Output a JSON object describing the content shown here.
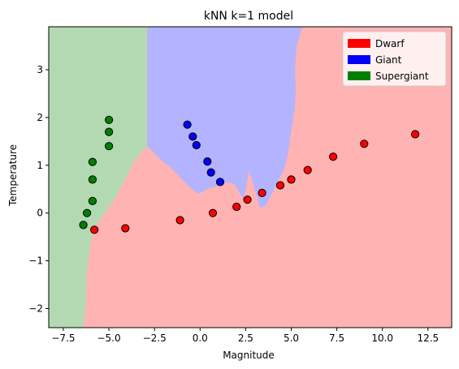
{
  "chart_data": {
    "type": "scatter",
    "title": "kNN k=1 model",
    "xlabel": "Magnitude",
    "ylabel": "Temperature",
    "xlim": [
      -8.3,
      13.8
    ],
    "ylim": [
      -2.4,
      3.9
    ],
    "xticks": [
      "-7.5",
      "-5.0",
      "-2.5",
      "0.0",
      "2.5",
      "5.0",
      "7.5",
      "10.0",
      "12.5"
    ],
    "yticks": [
      "-2",
      "-1",
      "0",
      "1",
      "2",
      "3"
    ],
    "grid": false,
    "legend_position": "top-right",
    "series": [
      {
        "name": "Dwarf",
        "color": "#ff0000",
        "region_color": "#ffb3b3",
        "points": [
          [
            -5.8,
            -0.35
          ],
          [
            -4.1,
            -0.32
          ],
          [
            -1.1,
            -0.15
          ],
          [
            0.7,
            0.0
          ],
          [
            2.0,
            0.13
          ],
          [
            2.6,
            0.28
          ],
          [
            3.4,
            0.42
          ],
          [
            4.4,
            0.58
          ],
          [
            5.0,
            0.7
          ],
          [
            5.9,
            0.9
          ],
          [
            7.3,
            1.18
          ],
          [
            9.0,
            1.45
          ],
          [
            11.8,
            1.65
          ]
        ]
      },
      {
        "name": "Giant",
        "color": "#0000ff",
        "region_color": "#b3b3ff",
        "points": [
          [
            -0.7,
            1.85
          ],
          [
            -0.4,
            1.6
          ],
          [
            -0.2,
            1.42
          ],
          [
            0.4,
            1.08
          ],
          [
            0.6,
            0.85
          ],
          [
            1.1,
            0.65
          ]
        ]
      },
      {
        "name": "Supergiant",
        "color": "#008000",
        "region_color": "#b3d9b3",
        "points": [
          [
            -5.0,
            1.95
          ],
          [
            -5.0,
            1.7
          ],
          [
            -5.0,
            1.4
          ],
          [
            -5.9,
            1.07
          ],
          [
            -5.9,
            0.7
          ],
          [
            -5.9,
            0.25
          ],
          [
            -6.2,
            0.0
          ],
          [
            -6.4,
            -0.25
          ]
        ]
      }
    ],
    "regions": {
      "supergiant_boundary": [
        [
          -8.3,
          3.9
        ],
        [
          -2.9,
          3.9
        ],
        [
          -2.9,
          1.4
        ],
        [
          -3.5,
          1.15
        ],
        [
          -4.0,
          0.8
        ],
        [
          -4.6,
          0.35
        ],
        [
          -5.3,
          -0.05
        ],
        [
          -5.8,
          -0.3
        ],
        [
          -6.0,
          -0.6
        ],
        [
          -6.2,
          -1.2
        ],
        [
          -6.3,
          -2.0
        ],
        [
          -6.4,
          -2.4
        ],
        [
          -8.3,
          -2.4
        ]
      ],
      "giant_boundary": [
        [
          -2.9,
          3.9
        ],
        [
          5.7,
          3.9
        ],
        [
          5.6,
          3.9
        ],
        [
          5.3,
          3.5
        ],
        [
          5.2,
          3.0
        ],
        [
          5.25,
          2.6
        ],
        [
          5.2,
          2.2
        ],
        [
          4.95,
          1.6
        ],
        [
          4.8,
          1.2
        ],
        [
          4.6,
          0.9
        ],
        [
          4.3,
          0.7
        ],
        [
          4.0,
          0.45
        ],
        [
          3.6,
          0.15
        ],
        [
          3.3,
          0.1
        ],
        [
          3.0,
          0.5
        ],
        [
          2.7,
          0.9
        ],
        [
          2.4,
          0.3
        ],
        [
          2.2,
          0.4
        ],
        [
          1.9,
          0.6
        ],
        [
          1.5,
          0.65
        ],
        [
          1.0,
          0.58
        ],
        [
          0.4,
          0.5
        ],
        [
          -0.1,
          0.4
        ],
        [
          -0.6,
          0.55
        ],
        [
          -1.1,
          0.75
        ],
        [
          -1.6,
          0.95
        ],
        [
          -2.1,
          1.1
        ],
        [
          -2.6,
          1.28
        ],
        [
          -2.9,
          1.4
        ]
      ]
    }
  }
}
